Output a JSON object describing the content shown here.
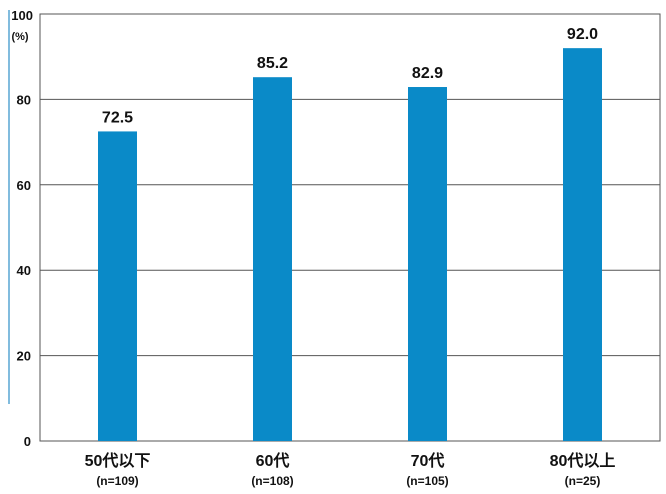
{
  "chart_data": {
    "type": "bar",
    "title": "",
    "xlabel": "",
    "ylabel": "",
    "y_unit": "(%)",
    "ylim": [
      0,
      100
    ],
    "yticks": [
      0,
      20,
      40,
      60,
      80,
      100
    ],
    "grid": true,
    "categories": [
      "50代以下",
      "60代",
      "70代",
      "80代以上"
    ],
    "sample_sizes": [
      "(n=109)",
      "(n=108)",
      "(n=105)",
      "(n=25)"
    ],
    "values": [
      72.5,
      85.2,
      82.9,
      92.0
    ],
    "value_labels": [
      "72.5",
      "85.2",
      "82.9",
      "92.0"
    ],
    "colors": {
      "bar": "#0a8ac8",
      "grid": "#555555",
      "frame": "#555555",
      "left_accent": "#2e8fc8"
    }
  }
}
